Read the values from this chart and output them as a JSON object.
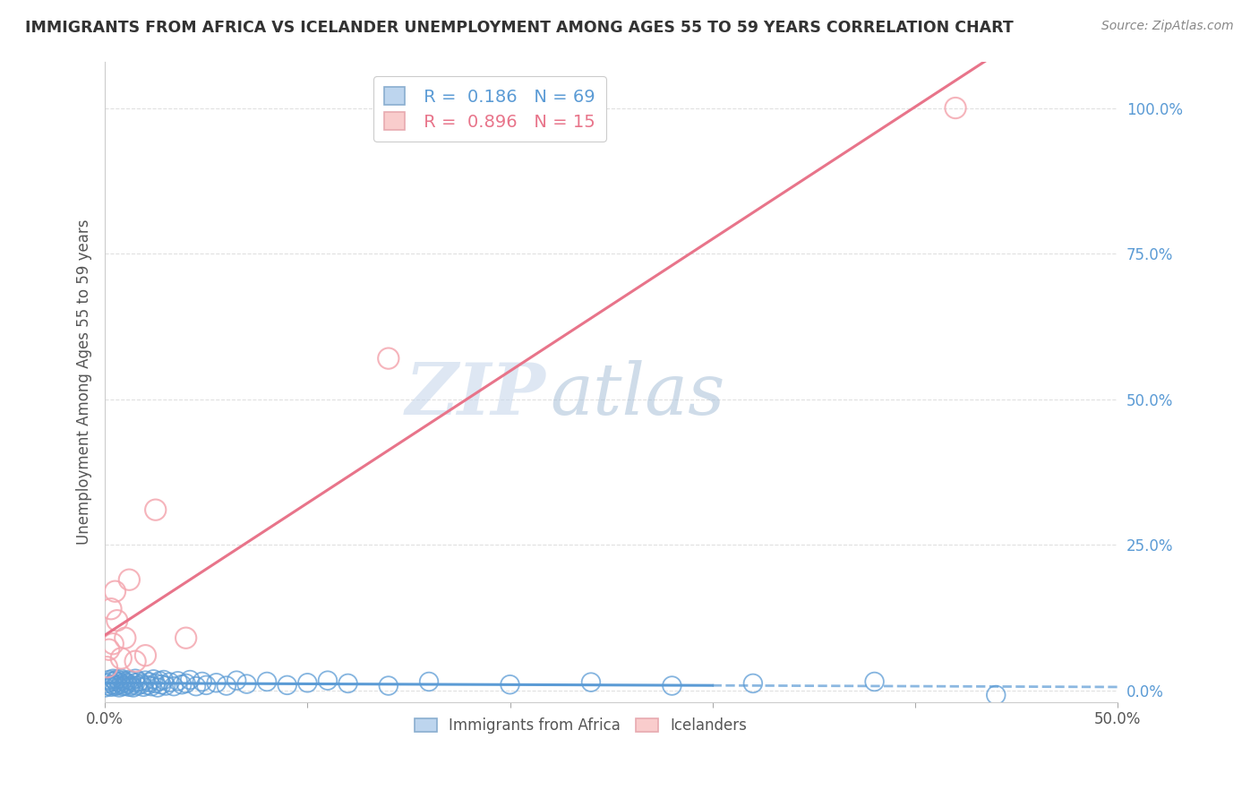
{
  "title": "IMMIGRANTS FROM AFRICA VS ICELANDER UNEMPLOYMENT AMONG AGES 55 TO 59 YEARS CORRELATION CHART",
  "source": "Source: ZipAtlas.com",
  "ylabel": "Unemployment Among Ages 55 to 59 years",
  "xlim": [
    0.0,
    0.5
  ],
  "ylim": [
    -0.02,
    1.08
  ],
  "yticks": [
    0.0,
    0.25,
    0.5,
    0.75,
    1.0
  ],
  "ytick_labels": [
    "0.0%",
    "25.0%",
    "50.0%",
    "75.0%",
    "100.0%"
  ],
  "xticks": [
    0.0,
    0.1,
    0.2,
    0.3,
    0.4,
    0.5
  ],
  "xtick_labels": [
    "0.0%",
    "",
    "",
    "",
    "",
    "50.0%"
  ],
  "blue_color": "#5B9BD5",
  "pink_color": "#F4A7B0",
  "pink_line_color": "#E8748A",
  "blue_label": "Immigrants from Africa",
  "pink_label": "Icelanders",
  "R_blue": 0.186,
  "N_blue": 69,
  "R_pink": 0.896,
  "N_pink": 15,
  "blue_scatter_x": [
    0.0,
    0.001,
    0.002,
    0.002,
    0.003,
    0.003,
    0.004,
    0.004,
    0.005,
    0.005,
    0.006,
    0.006,
    0.007,
    0.007,
    0.008,
    0.008,
    0.009,
    0.009,
    0.01,
    0.01,
    0.011,
    0.012,
    0.012,
    0.013,
    0.013,
    0.014,
    0.015,
    0.015,
    0.016,
    0.017,
    0.018,
    0.019,
    0.02,
    0.021,
    0.022,
    0.023,
    0.024,
    0.025,
    0.026,
    0.027,
    0.028,
    0.029,
    0.03,
    0.032,
    0.034,
    0.036,
    0.038,
    0.04,
    0.042,
    0.045,
    0.048,
    0.05,
    0.055,
    0.06,
    0.065,
    0.07,
    0.08,
    0.09,
    0.1,
    0.11,
    0.12,
    0.14,
    0.16,
    0.2,
    0.24,
    0.28,
    0.32,
    0.38,
    0.44
  ],
  "blue_scatter_y": [
    0.005,
    0.012,
    0.008,
    0.018,
    0.006,
    0.015,
    0.01,
    0.02,
    0.007,
    0.016,
    0.009,
    0.019,
    0.005,
    0.014,
    0.011,
    0.02,
    0.007,
    0.017,
    0.008,
    0.015,
    0.012,
    0.006,
    0.018,
    0.009,
    0.016,
    0.005,
    0.013,
    0.02,
    0.008,
    0.015,
    0.011,
    0.006,
    0.017,
    0.009,
    0.014,
    0.007,
    0.019,
    0.012,
    0.005,
    0.016,
    0.01,
    0.018,
    0.008,
    0.014,
    0.007,
    0.016,
    0.01,
    0.012,
    0.018,
    0.007,
    0.015,
    0.009,
    0.013,
    0.008,
    0.017,
    0.011,
    0.015,
    0.009,
    0.013,
    0.017,
    0.012,
    0.008,
    0.015,
    0.01,
    0.014,
    0.008,
    0.012,
    0.015,
    -0.008
  ],
  "pink_scatter_x": [
    0.001,
    0.002,
    0.003,
    0.004,
    0.005,
    0.006,
    0.008,
    0.01,
    0.012,
    0.015,
    0.02,
    0.025,
    0.04,
    0.14,
    0.42
  ],
  "pink_scatter_y": [
    0.04,
    0.07,
    0.14,
    0.08,
    0.17,
    0.12,
    0.055,
    0.09,
    0.19,
    0.05,
    0.06,
    0.31,
    0.09,
    0.57,
    1.0
  ],
  "watermark_zip": "ZIP",
  "watermark_atlas": "atlas",
  "background_color": "#FFFFFF",
  "grid_color": "#E0E0E0"
}
